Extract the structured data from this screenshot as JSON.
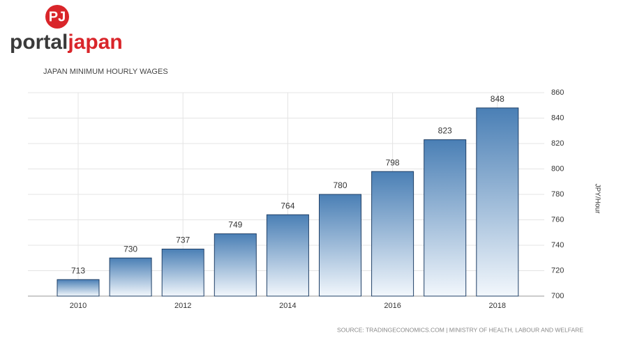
{
  "logo": {
    "mark": "PJ",
    "word1": "portal",
    "word2": "japan"
  },
  "chart_data": {
    "type": "bar",
    "title": "JAPAN  MINIMUM HOURLY WAGES",
    "categories": [
      "2010",
      null,
      "2012",
      null,
      "2014",
      null,
      "2016",
      null,
      "2018"
    ],
    "values": [
      713,
      730,
      737,
      749,
      764,
      780,
      798,
      823,
      848
    ],
    "color": "#4a7fb5",
    "ylim": [
      700,
      860
    ],
    "yticks": [
      700,
      720,
      740,
      760,
      780,
      800,
      820,
      840,
      860
    ],
    "y_label": "JPY/Hour",
    "grid": true,
    "source": "SOURCE: TRADINGECONOMICS.COM | MINISTRY OF HEALTH, LABOUR AND WELFARE"
  }
}
